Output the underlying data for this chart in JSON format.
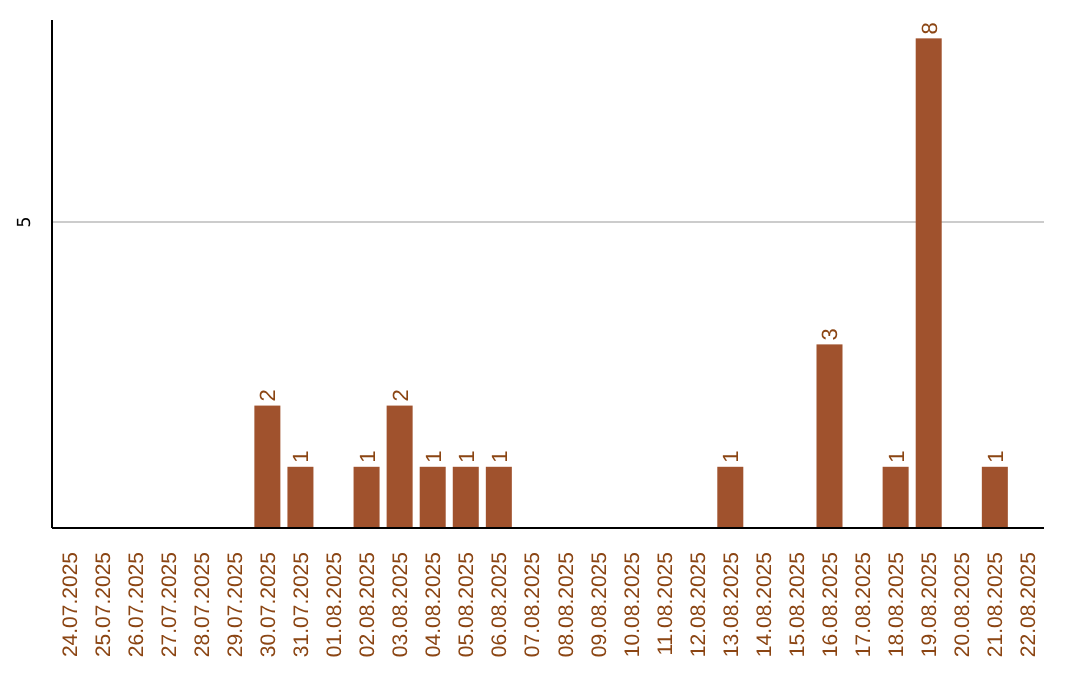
{
  "chart_data": {
    "type": "bar",
    "categories": [
      "24.07.2025",
      "25.07.2025",
      "26.07.2025",
      "27.07.2025",
      "28.07.2025",
      "29.07.2025",
      "30.07.2025",
      "31.07.2025",
      "01.08.2025",
      "02.08.2025",
      "03.08.2025",
      "04.08.2025",
      "05.08.2025",
      "06.08.2025",
      "07.08.2025",
      "08.08.2025",
      "09.08.2025",
      "10.08.2025",
      "11.08.2025",
      "12.08.2025",
      "13.08.2025",
      "14.08.2025",
      "15.08.2025",
      "16.08.2025",
      "17.08.2025",
      "18.08.2025",
      "19.08.2025",
      "20.08.2025",
      "21.08.2025",
      "22.08.2025"
    ],
    "values": [
      0,
      0,
      0,
      0,
      0,
      0,
      2,
      1,
      0,
      1,
      2,
      1,
      1,
      1,
      0,
      0,
      0,
      0,
      0,
      0,
      1,
      0,
      0,
      3,
      0,
      1,
      8,
      0,
      1,
      0
    ],
    "value_labels": [
      null,
      null,
      null,
      null,
      null,
      null,
      "2",
      "1",
      null,
      "1",
      "2",
      "1",
      "1",
      "1",
      null,
      null,
      null,
      null,
      null,
      null,
      "1",
      null,
      null,
      "3",
      null,
      "1",
      "8",
      null,
      "1",
      null
    ],
    "color": "#a0522d",
    "ylim": [
      0,
      8.3
    ],
    "yticks": [
      5
    ],
    "grid": "y"
  }
}
